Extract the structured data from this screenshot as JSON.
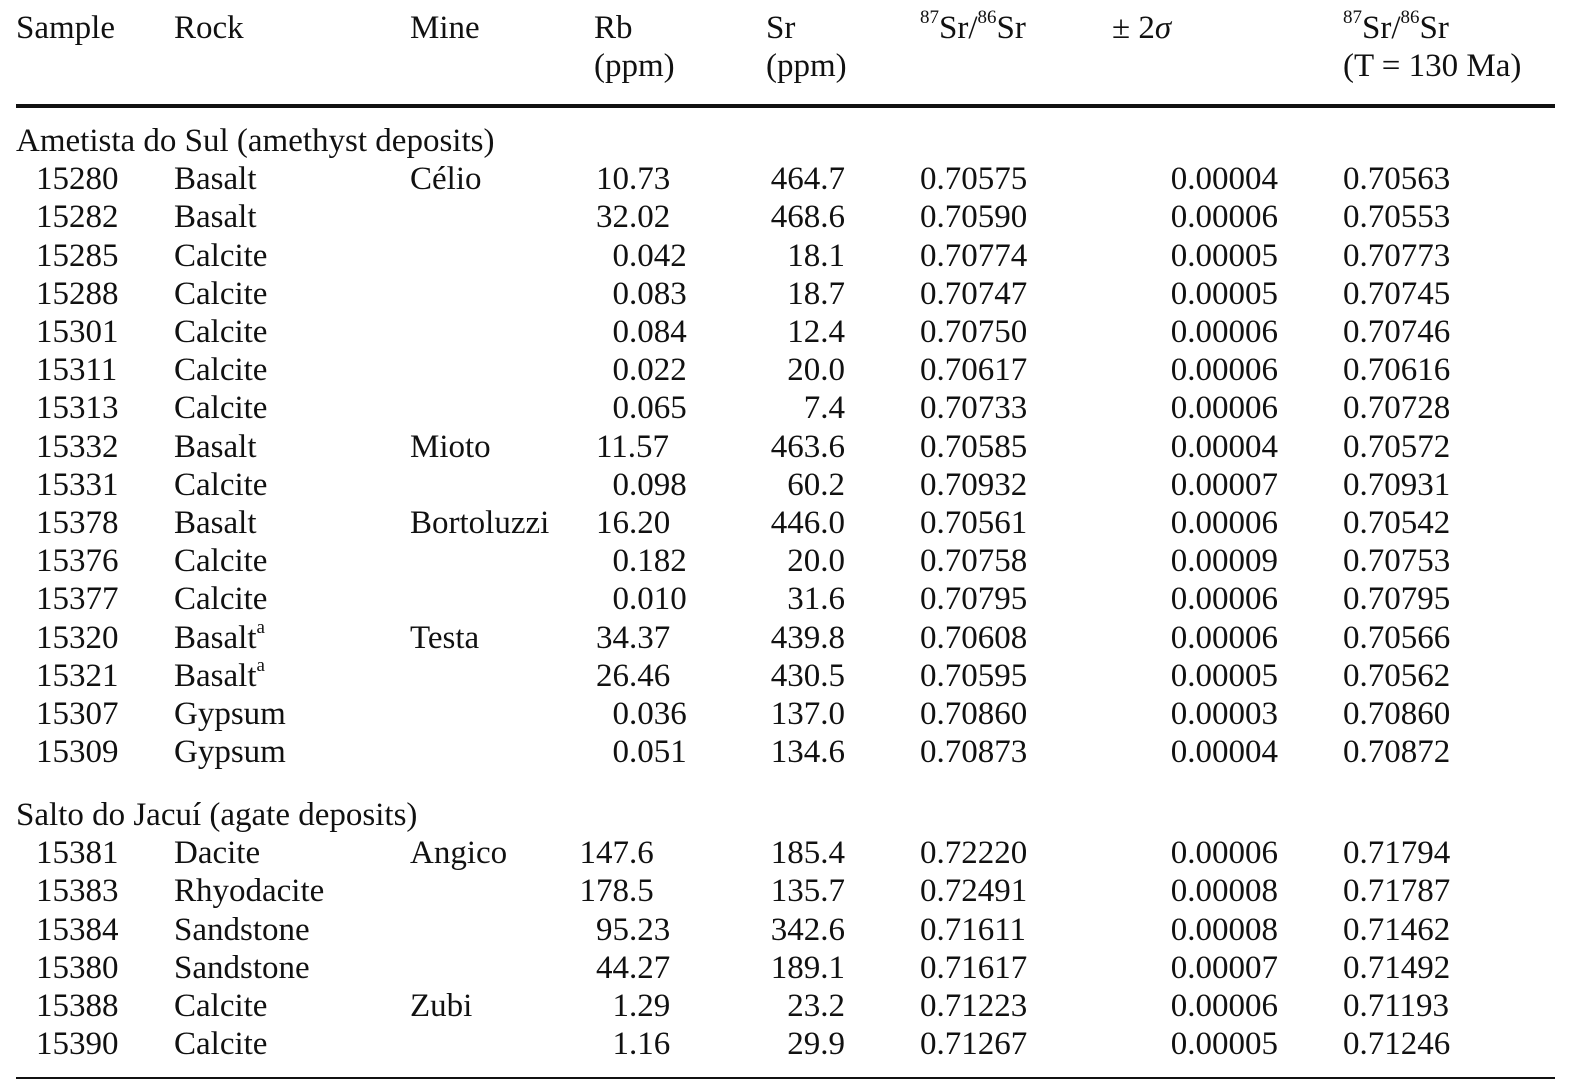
{
  "headers": {
    "sample": "Sample",
    "rock": "Rock",
    "mine": "Mine",
    "rb": "Rb",
    "rb_unit": "(ppm)",
    "sr": "Sr",
    "sr_unit": "(ppm)",
    "ratio_sup1": "87",
    "ratio_sr1": "Sr/",
    "ratio_sup2": "86",
    "ratio_sr2": "Sr",
    "err_pm": "± 2",
    "err_sigma": "σ",
    "ratio_t_sup1": "87",
    "ratio_t_sr1": "Sr/",
    "ratio_t_sup2": "86",
    "ratio_t_sr2": "Sr",
    "ratio_t_line2": "(T = 130 Ma)"
  },
  "footnote_marker": "a",
  "groups": [
    {
      "title": "Ametista do Sul (amethyst deposits)",
      "rows": [
        {
          "sample": "15280",
          "rock": "Basalt",
          "mine": "Célio",
          "rb": "10.73",
          "sr": "464.7",
          "ratio": "0.70575",
          "err": "0.00004",
          "ratio_t": "0.70563"
        },
        {
          "sample": "15282",
          "rock": "Basalt",
          "mine": "",
          "rb": "32.02",
          "sr": "468.6",
          "ratio": "0.70590",
          "err": "0.00006",
          "ratio_t": "0.70553"
        },
        {
          "sample": "15285",
          "rock": "Calcite",
          "mine": "",
          "rb": "0.042",
          "sr": "18.1",
          "ratio": "0.70774",
          "err": "0.00005",
          "ratio_t": "0.70773"
        },
        {
          "sample": "15288",
          "rock": "Calcite",
          "mine": "",
          "rb": "0.083",
          "sr": "18.7",
          "ratio": "0.70747",
          "err": "0.00005",
          "ratio_t": "0.70745"
        },
        {
          "sample": "15301",
          "rock": "Calcite",
          "mine": "",
          "rb": "0.084",
          "sr": "12.4",
          "ratio": "0.70750",
          "err": "0.00006",
          "ratio_t": "0.70746"
        },
        {
          "sample": "15311",
          "rock": "Calcite",
          "mine": "",
          "rb": "0.022",
          "sr": "20.0",
          "ratio": "0.70617",
          "err": "0.00006",
          "ratio_t": "0.70616"
        },
        {
          "sample": "15313",
          "rock": "Calcite",
          "mine": "",
          "rb": "0.065",
          "sr": "7.4",
          "ratio": "0.70733",
          "err": "0.00006",
          "ratio_t": "0.70728"
        },
        {
          "sample": "15332",
          "rock": "Basalt",
          "mine": "Mioto",
          "rb": "11.57",
          "sr": "463.6",
          "ratio": "0.70585",
          "err": "0.00004",
          "ratio_t": "0.70572"
        },
        {
          "sample": "15331",
          "rock": "Calcite",
          "mine": "",
          "rb": "0.098",
          "sr": "60.2",
          "ratio": "0.70932",
          "err": "0.00007",
          "ratio_t": "0.70931"
        },
        {
          "sample": "15378",
          "rock": "Basalt",
          "mine": "Bortoluzzi",
          "rb": "16.20",
          "sr": "446.0",
          "ratio": "0.70561",
          "err": "0.00006",
          "ratio_t": "0.70542"
        },
        {
          "sample": "15376",
          "rock": "Calcite",
          "mine": "",
          "rb": "0.182",
          "sr": "20.0",
          "ratio": "0.70758",
          "err": "0.00009",
          "ratio_t": "0.70753"
        },
        {
          "sample": "15377",
          "rock": "Calcite",
          "mine": "",
          "rb": "0.010",
          "sr": "31.6",
          "ratio": "0.70795",
          "err": "0.00006",
          "ratio_t": "0.70795"
        },
        {
          "sample": "15320",
          "rock": "Basalt",
          "rock_note": "a",
          "mine": "Testa",
          "rb": "34.37",
          "sr": "439.8",
          "ratio": "0.70608",
          "err": "0.00006",
          "ratio_t": "0.70566"
        },
        {
          "sample": "15321",
          "rock": "Basalt",
          "rock_note": "a",
          "mine": "",
          "rb": "26.46",
          "sr": "430.5",
          "ratio": "0.70595",
          "err": "0.00005",
          "ratio_t": "0.70562"
        },
        {
          "sample": "15307",
          "rock": "Gypsum",
          "mine": "",
          "rb": "0.036",
          "sr": "137.0",
          "ratio": "0.70860",
          "err": "0.00003",
          "ratio_t": "0.70860"
        },
        {
          "sample": "15309",
          "rock": "Gypsum",
          "mine": "",
          "rb": "0.051",
          "sr": "134.6",
          "ratio": "0.70873",
          "err": "0.00004",
          "ratio_t": "0.70872"
        }
      ]
    },
    {
      "title": "Salto do Jacuí (agate deposits)",
      "rows": [
        {
          "sample": "15381",
          "rock": "Dacite",
          "mine": "Angico",
          "rb": "147.6",
          "sr": "185.4",
          "ratio": "0.72220",
          "err": "0.00006",
          "ratio_t": "0.71794"
        },
        {
          "sample": "15383",
          "rock": "Rhyodacite",
          "mine": "",
          "rb": "178.5",
          "sr": "135.7",
          "ratio": "0.72491",
          "err": "0.00008",
          "ratio_t": "0.71787"
        },
        {
          "sample": "15384",
          "rock": "Sandstone",
          "mine": "",
          "rb": "95.23",
          "sr": "342.6",
          "ratio": "0.71611",
          "err": "0.00008",
          "ratio_t": "0.71462"
        },
        {
          "sample": "15380",
          "rock": "Sandstone",
          "mine": "",
          "rb": "44.27",
          "sr": "189.1",
          "ratio": "0.71617",
          "err": "0.00007",
          "ratio_t": "0.71492"
        },
        {
          "sample": "15388",
          "rock": "Calcite",
          "mine": "Zubi",
          "rb": "1.29",
          "sr": "23.2",
          "ratio": "0.71223",
          "err": "0.00006",
          "ratio_t": "0.71193"
        },
        {
          "sample": "15390",
          "rock": "Calcite",
          "mine": "",
          "rb": "1.16",
          "sr": "29.9",
          "ratio": "0.71267",
          "err": "0.00005",
          "ratio_t": "0.71246"
        }
      ]
    }
  ]
}
